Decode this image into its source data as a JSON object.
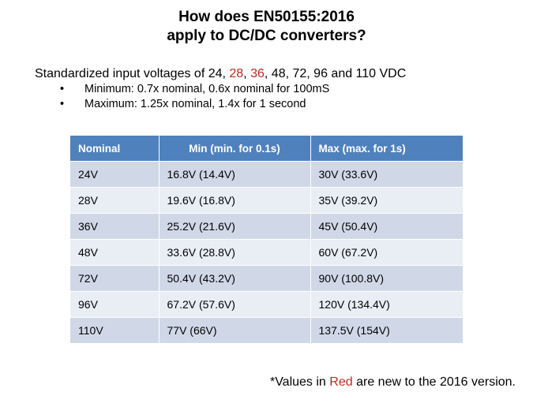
{
  "title": {
    "line1": "How does EN50155:2016",
    "line2": "apply to DC/DC converters?"
  },
  "intro": {
    "prefix": "Standardized input voltages of 24,",
    "red1": "28",
    "comma": ",",
    "red2": "36",
    "suffix": ", 48, 72, 96 and 110 VDC"
  },
  "bullets": [
    {
      "marker": "•",
      "text": "Minimum: 0.7x nominal, 0.6x nominal for 100mS"
    },
    {
      "marker": "•",
      "text": "Maximum: 1.25x nominal, 1.4x for 1 second"
    }
  ],
  "table": {
    "headers": [
      "Nominal",
      "Min (min. for 0.1s)",
      "Max (max. for 1s)"
    ],
    "rows": [
      [
        "24V",
        "16.8V (14.4V)",
        "30V (33.6V)"
      ],
      [
        "28V",
        "19.6V (16.8V)",
        "35V (39.2V)"
      ],
      [
        "36V",
        "25.2V (21.6V)",
        "45V (50.4V)"
      ],
      [
        "48V",
        "33.6V (28.8V)",
        "60V (67.2V)"
      ],
      [
        "72V",
        "50.4V (43.2V)",
        "90V (100.8V)"
      ],
      [
        "96V",
        "67.2V (57.6V)",
        "120V (134.4V)"
      ],
      [
        "110V",
        "77V (66V)",
        "137.5V (154V)"
      ]
    ]
  },
  "footnote": {
    "prefix": "*Values in",
    "red": "Red",
    "suffix": "are new to the 2016 version."
  },
  "colors": {
    "header_blue": "#4f81bd",
    "row_dark": "#d0d8e8",
    "row_light": "#e9edf4",
    "accent_red": "#c0281e"
  }
}
